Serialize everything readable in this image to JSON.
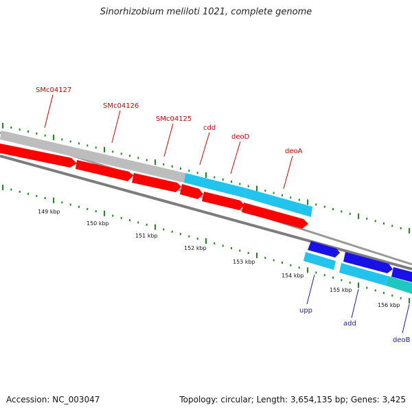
{
  "title": "Sinorhizobium meliloti 1021, complete genome",
  "footer": {
    "accession": "Accession: NC_003047",
    "summary": "Topology: circular; Length: 3,654,135 bp; Genes: 3,425"
  },
  "colors": {
    "red_gene": "#ff0000",
    "cyan_gene": "#22c4ee",
    "blue_gene": "#1a10e8",
    "teal_gene": "#1ec8c0",
    "gray_gene": "#bdbdbd",
    "red_label": "#cc0000",
    "blue_label": "#1a1aa8",
    "tick": "#1a8a1a"
  },
  "tick_labels": [
    "149 kbp",
    "150 kbp",
    "151 kbp",
    "152 kbp",
    "153 kbp",
    "154 kbp",
    "155 kbp",
    "156 kbp"
  ],
  "gene_labels_top": [
    "SMc04127",
    "SMc04126",
    "SMc04125",
    "cdd",
    "deoD",
    "deoA"
  ],
  "gene_labels_bottom": [
    "upp",
    "add",
    "deoB"
  ]
}
